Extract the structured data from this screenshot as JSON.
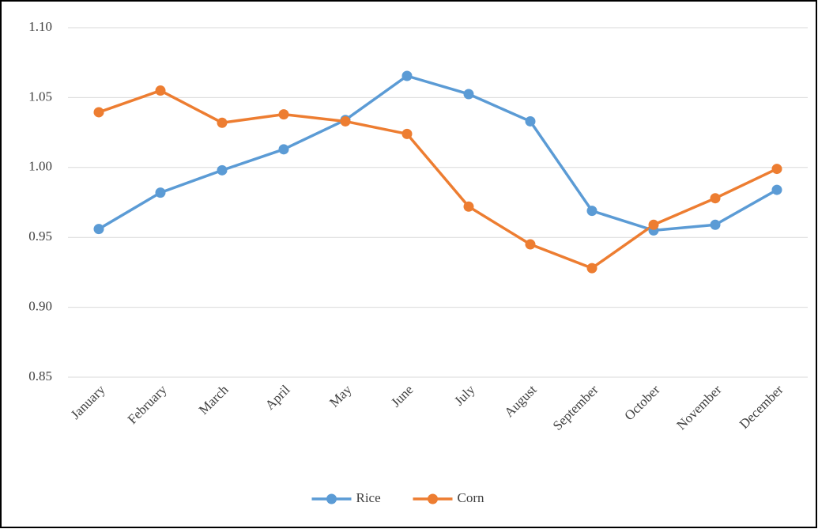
{
  "chart_data": {
    "type": "line",
    "categories": [
      "January",
      "February",
      "March",
      "April",
      "May",
      "June",
      "July",
      "August",
      "September",
      "October",
      "November",
      "December"
    ],
    "series": [
      {
        "name": "Rice",
        "color": "#5b9bd5",
        "values": [
          0.956,
          0.982,
          0.998,
          1.013,
          1.034,
          1.0655,
          1.0525,
          1.033,
          0.969,
          0.955,
          0.959,
          0.984
        ]
      },
      {
        "name": "Corn",
        "color": "#ed7d31",
        "values": [
          1.0395,
          1.055,
          1.032,
          1.038,
          1.033,
          1.024,
          0.972,
          0.945,
          0.928,
          0.959,
          0.978,
          0.999
        ]
      }
    ],
    "ylim": [
      0.85,
      1.1
    ],
    "yticks": [
      0.85,
      {
        "value": 0.9,
        "label": "0.90"
      },
      0.95,
      {
        "value": 1.0,
        "label": "1.00"
      },
      1.05,
      {
        "value": 1.1,
        "label": "1.10"
      }
    ],
    "grid": true,
    "legend": "bottom"
  }
}
